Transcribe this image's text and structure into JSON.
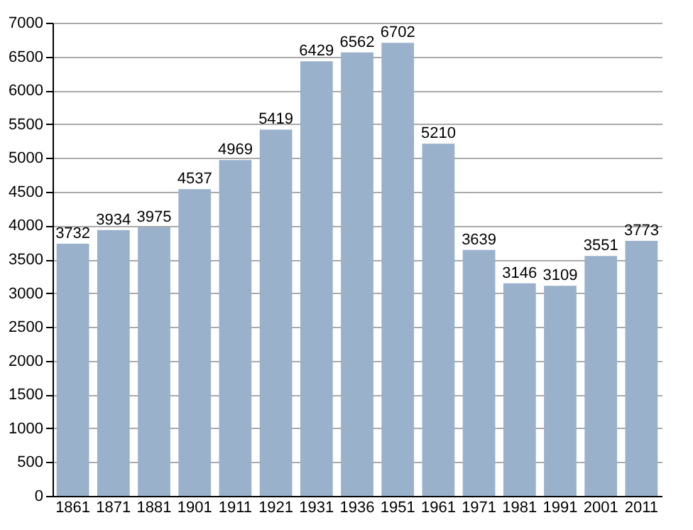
{
  "chart_data": {
    "type": "bar",
    "categories": [
      "1861",
      "1871",
      "1881",
      "1901",
      "1911",
      "1921",
      "1931",
      "1936",
      "1951",
      "1961",
      "1971",
      "1981",
      "1991",
      "2001",
      "2011"
    ],
    "values": [
      3732,
      3934,
      3975,
      4537,
      4969,
      5419,
      6429,
      6562,
      6702,
      5210,
      3639,
      3146,
      3109,
      3551,
      3773
    ],
    "color": "#9ab1cc",
    "ylim": [
      0,
      7000
    ],
    "yticks": [
      0,
      500,
      1000,
      1500,
      2000,
      2500,
      3000,
      3500,
      4000,
      4500,
      5000,
      5500,
      6000,
      6500,
      7000
    ],
    "grid": "y",
    "data_labels": true
  }
}
